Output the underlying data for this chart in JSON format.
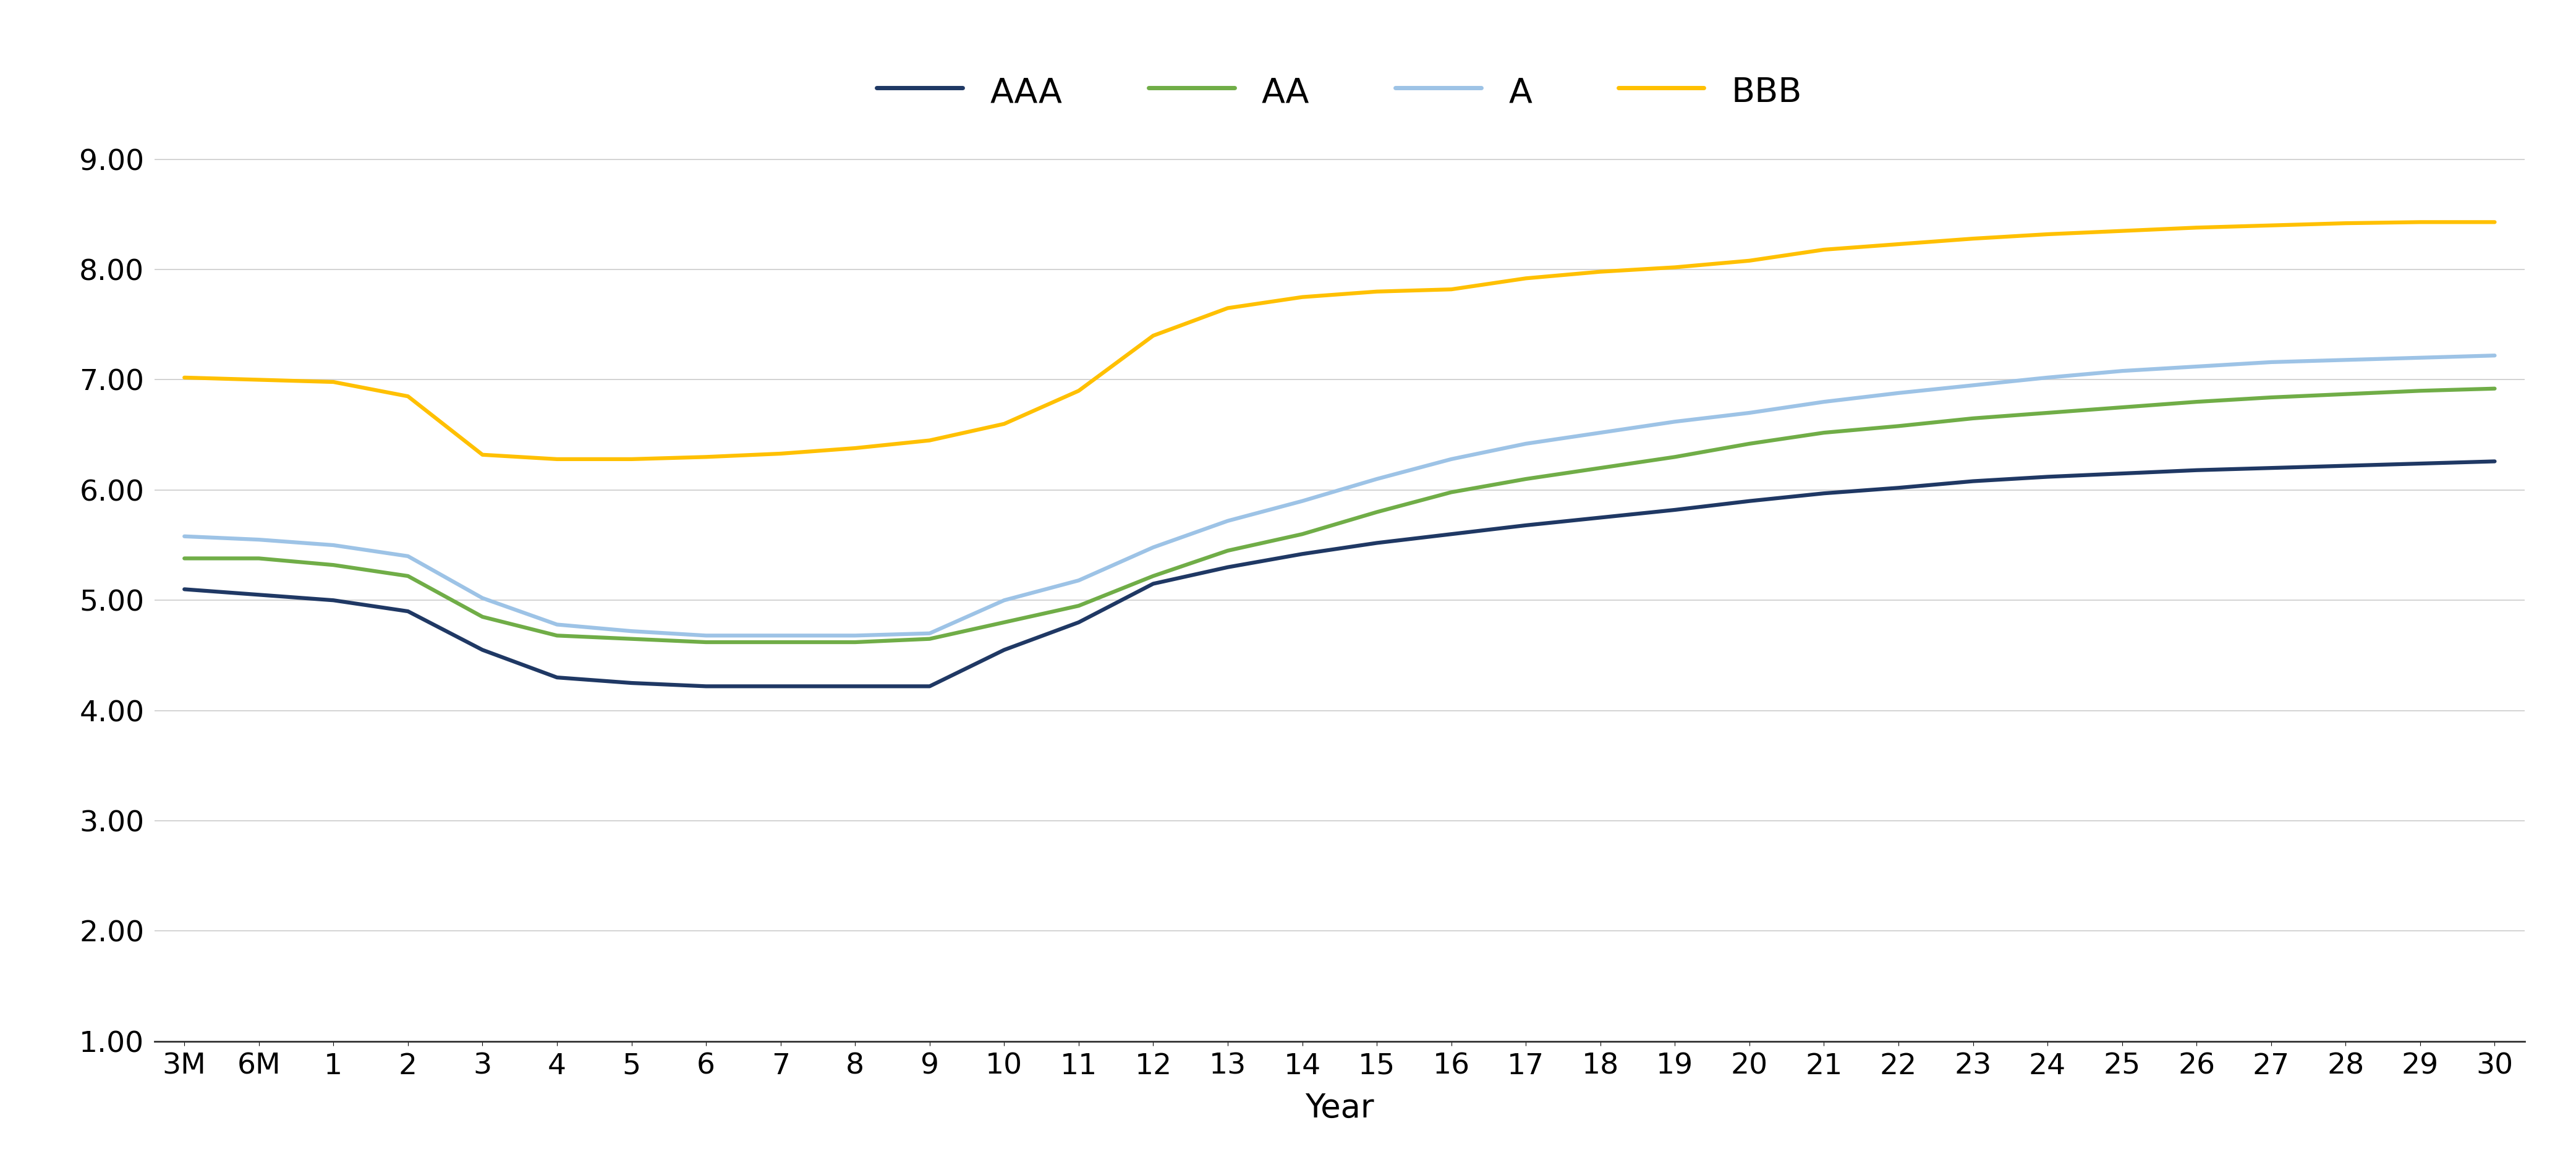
{
  "xlabel": "Year",
  "x_labels": [
    "3M",
    "6M",
    "1",
    "2",
    "3",
    "4",
    "5",
    "6",
    "7",
    "8",
    "9",
    "10",
    "11",
    "12",
    "13",
    "14",
    "15",
    "16",
    "17",
    "18",
    "19",
    "20",
    "21",
    "22",
    "23",
    "24",
    "25",
    "26",
    "27",
    "28",
    "29",
    "30"
  ],
  "series": {
    "AAA": {
      "color": "#1f3864",
      "values": [
        5.1,
        5.05,
        5.0,
        4.9,
        4.55,
        4.3,
        4.25,
        4.22,
        4.22,
        4.22,
        4.22,
        4.55,
        4.8,
        5.15,
        5.3,
        5.42,
        5.52,
        5.6,
        5.68,
        5.75,
        5.82,
        5.9,
        5.97,
        6.02,
        6.08,
        6.12,
        6.15,
        6.18,
        6.2,
        6.22,
        6.24,
        6.26
      ]
    },
    "AA": {
      "color": "#70ad47",
      "values": [
        5.38,
        5.38,
        5.32,
        5.22,
        4.85,
        4.68,
        4.65,
        4.62,
        4.62,
        4.62,
        4.65,
        4.8,
        4.95,
        5.22,
        5.45,
        5.6,
        5.8,
        5.98,
        6.1,
        6.2,
        6.3,
        6.42,
        6.52,
        6.58,
        6.65,
        6.7,
        6.75,
        6.8,
        6.84,
        6.87,
        6.9,
        6.92
      ]
    },
    "A": {
      "color": "#9dc3e6",
      "values": [
        5.58,
        5.55,
        5.5,
        5.4,
        5.02,
        4.78,
        4.72,
        4.68,
        4.68,
        4.68,
        4.7,
        5.0,
        5.18,
        5.48,
        5.72,
        5.9,
        6.1,
        6.28,
        6.42,
        6.52,
        6.62,
        6.7,
        6.8,
        6.88,
        6.95,
        7.02,
        7.08,
        7.12,
        7.16,
        7.18,
        7.2,
        7.22
      ]
    },
    "BBB": {
      "color": "#ffc000",
      "values": [
        7.02,
        7.0,
        6.98,
        6.85,
        6.32,
        6.28,
        6.28,
        6.3,
        6.33,
        6.38,
        6.45,
        6.6,
        6.9,
        7.4,
        7.65,
        7.75,
        7.8,
        7.82,
        7.92,
        7.98,
        8.02,
        8.08,
        8.18,
        8.23,
        8.28,
        8.32,
        8.35,
        8.38,
        8.4,
        8.42,
        8.43,
        8.43
      ]
    }
  },
  "ylim": [
    1.0,
    9.5
  ],
  "yticks": [
    1.0,
    2.0,
    3.0,
    4.0,
    5.0,
    6.0,
    7.0,
    8.0,
    9.0
  ],
  "ytick_labels": [
    "1.00",
    "2.00",
    "3.00",
    "4.00",
    "5.00",
    "6.00",
    "7.00",
    "8.00",
    "9.00"
  ],
  "background_color": "#ffffff",
  "grid_color": "#cccccc",
  "line_width": 4.5,
  "legend_order": [
    "AAA",
    "AA",
    "A",
    "BBB"
  ],
  "tick_fontsize": 34,
  "xlabel_fontsize": 38,
  "legend_fontsize": 40
}
